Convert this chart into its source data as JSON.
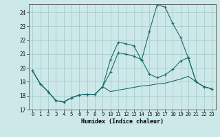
{
  "title": "",
  "xlabel": "Humidex (Indice chaleur)",
  "ylabel": "",
  "background_color": "#cce8e8",
  "grid_color": "#aacccc",
  "line_color": "#1a6b6b",
  "xlim": [
    -0.5,
    23.5
  ],
  "ylim": [
    17,
    24.6
  ],
  "yticks": [
    17,
    18,
    19,
    20,
    21,
    22,
    23,
    24
  ],
  "xticks": [
    0,
    1,
    2,
    3,
    4,
    5,
    6,
    7,
    8,
    9,
    10,
    11,
    12,
    13,
    14,
    15,
    16,
    17,
    18,
    19,
    20,
    21,
    22,
    23
  ],
  "line1_x": [
    0,
    1,
    2,
    3,
    4,
    5,
    6,
    7,
    8,
    9,
    10,
    11,
    12,
    13,
    14,
    15,
    16,
    17,
    18,
    19,
    20,
    21,
    22,
    23
  ],
  "line1_y": [
    19.8,
    18.85,
    18.3,
    17.65,
    17.55,
    17.85,
    18.05,
    18.1,
    18.1,
    18.65,
    20.6,
    21.85,
    21.75,
    21.6,
    20.55,
    22.65,
    24.55,
    24.4,
    23.2,
    22.2,
    20.7,
    19.0,
    18.65,
    18.5
  ],
  "line2_x": [
    0,
    1,
    2,
    3,
    4,
    5,
    6,
    7,
    8,
    9,
    10,
    11,
    12,
    13,
    14,
    15,
    16,
    17,
    18,
    19,
    20,
    21,
    22,
    23
  ],
  "line2_y": [
    19.8,
    18.85,
    18.3,
    17.65,
    17.55,
    17.85,
    18.05,
    18.1,
    18.1,
    18.65,
    19.7,
    21.1,
    21.0,
    20.85,
    20.6,
    19.55,
    19.3,
    19.5,
    19.9,
    20.5,
    20.75,
    19.0,
    18.65,
    18.5
  ],
  "line3_x": [
    0,
    1,
    2,
    3,
    4,
    5,
    6,
    7,
    8,
    9,
    10,
    11,
    12,
    13,
    14,
    15,
    16,
    17,
    18,
    19,
    20,
    21,
    22,
    23
  ],
  "line3_y": [
    19.8,
    18.85,
    18.3,
    17.65,
    17.55,
    17.85,
    18.05,
    18.1,
    18.1,
    18.65,
    18.3,
    18.4,
    18.5,
    18.6,
    18.7,
    18.75,
    18.85,
    18.9,
    19.05,
    19.2,
    19.4,
    19.0,
    18.65,
    18.5
  ]
}
